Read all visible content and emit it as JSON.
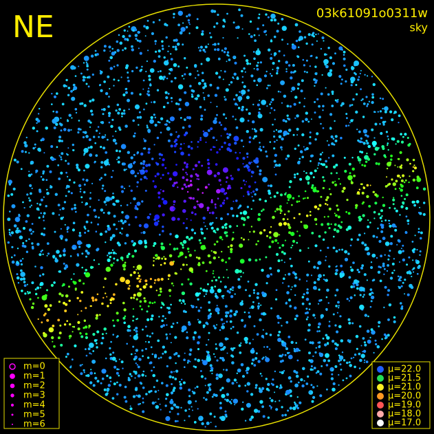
{
  "header": {
    "corner": "NE",
    "id": "03k61091o0311w",
    "mode": "sky"
  },
  "legend_magnitude": {
    "color": "#ff00ff",
    "items": [
      "m=0",
      "m=1",
      "m=2",
      "m=3",
      "m=4",
      "m=5",
      "m=6"
    ]
  },
  "legend_brightness": {
    "items": [
      {
        "label": "μ=22.0",
        "color": "#1f5fff"
      },
      {
        "label": "μ=21.5",
        "color": "#22dd55"
      },
      {
        "label": "μ=21.0",
        "color": "#ffee22"
      },
      {
        "label": "μ=20.0",
        "color": "#ff9922"
      },
      {
        "label": "μ=19.0",
        "color": "#ff5555"
      },
      {
        "label": "μ=18.0",
        "color": "#ffaaaa"
      },
      {
        "label": "μ=17.0",
        "color": "#ffffff"
      }
    ]
  }
}
